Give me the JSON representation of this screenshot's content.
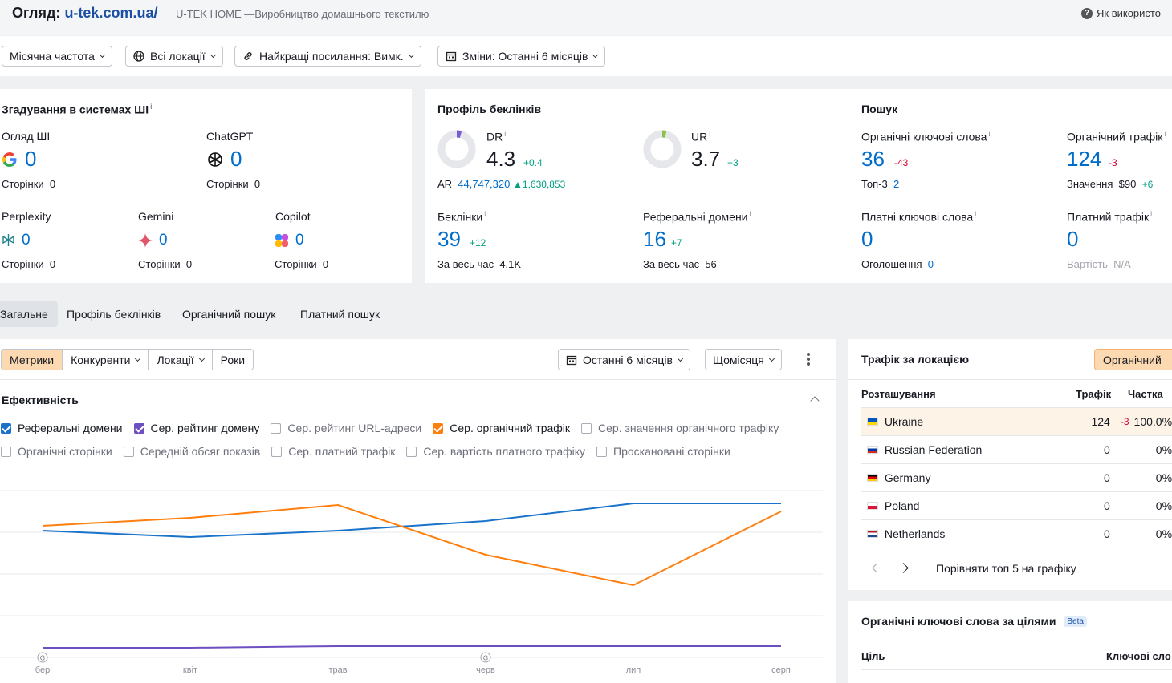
{
  "header": {
    "title_prefix": "Огляд:",
    "domain": "u-tek.com.ua/",
    "subtitle": "U-TEK HOME —Виробництво домашнього текстилю",
    "help": "Як використо"
  },
  "filters": {
    "frequency": "Місячна частота",
    "locations": "Всі локації",
    "best_links": "Найкращі посилання: Вимк.",
    "changes": "Зміни: Останні 6 місяців"
  },
  "ai": {
    "title": "Згадування в системах ШІ",
    "overview": {
      "label": "Огляд ШІ",
      "value": "0",
      "pages_label": "Сторінки",
      "pages": "0"
    },
    "chatgpt": {
      "label": "ChatGPT",
      "value": "0",
      "pages_label": "Сторінки",
      "pages": "0"
    },
    "perplexity": {
      "label": "Perplexity",
      "value": "0",
      "pages_label": "Сторінки",
      "pages": "0"
    },
    "gemini": {
      "label": "Gemini",
      "value": "0",
      "pages_label": "Сторінки",
      "pages": "0"
    },
    "copilot": {
      "label": "Copilot",
      "value": "0",
      "pages_label": "Сторінки",
      "pages": "0"
    }
  },
  "backlinks": {
    "title": "Профіль беклінків",
    "dr": {
      "label": "DR",
      "value": "4.3",
      "delta": "+0.4",
      "ring_fraction": 0.043
    },
    "ur": {
      "label": "UR",
      "value": "3.7",
      "delta": "+3",
      "ring_fraction": 0.037
    },
    "ar": {
      "label": "AR",
      "value": "44,747,320",
      "delta": "1,630,853"
    },
    "backlinks": {
      "label": "Беклінки",
      "value": "39",
      "delta": "+12",
      "all_time_label": "За весь час",
      "all_time": "4.1K"
    },
    "ref_domains": {
      "label": "Реферальні домени",
      "value": "16",
      "delta": "+7",
      "all_time_label": "За весь час",
      "all_time": "56"
    }
  },
  "search": {
    "title": "Пошук",
    "organic_kw": {
      "label": "Органічні ключові слова",
      "value": "36",
      "delta": "-43",
      "sub_label": "Топ-3",
      "sub": "2"
    },
    "organic_traffic": {
      "label": "Органічний трафік",
      "value": "124",
      "delta": "-3",
      "sub_label": "Значення",
      "sub": "$90",
      "sub_delta": "+6"
    },
    "paid_kw": {
      "label": "Платні ключові слова",
      "value": "0",
      "sub_label": "Оголошення",
      "sub": "0"
    },
    "paid_traffic": {
      "label": "Платний трафік",
      "value": "0",
      "sub_label": "Вартість",
      "sub": "N/A"
    }
  },
  "tabs": [
    "Загальне",
    "Профіль беклінків",
    "Органічний пошук",
    "Платний пошук"
  ],
  "chart_toolbar": {
    "tabs": [
      "Метрики",
      "Конкуренти",
      "Локації",
      "Роки"
    ],
    "period": "Останні 6 місяців",
    "interval": "Щомісяця"
  },
  "performance": {
    "title": "Ефективність",
    "legend_row1": [
      {
        "label": "Реферальні домени",
        "checked": true,
        "color": "#1a73c9"
      },
      {
        "label": "Сер. рейтинг домену",
        "checked": true,
        "color": "#6d4fc1"
      },
      {
        "label": "Сер. рейтинг URL-адреси",
        "checked": false
      },
      {
        "label": "Сер. органічний трафік",
        "checked": true,
        "color": "#ff7f0e"
      },
      {
        "label": "Сер. значення органічного трафіку",
        "checked": false
      }
    ],
    "legend_row2": [
      {
        "label": "Органічні сторінки",
        "checked": false
      },
      {
        "label": "Середній обсяг показів",
        "checked": false
      },
      {
        "label": "Сер. платний трафік",
        "checked": false
      },
      {
        "label": "Сер. вартість платного трафіку",
        "checked": false
      },
      {
        "label": "Проскановані сторінки",
        "checked": false
      }
    ]
  },
  "chart_data": {
    "type": "line",
    "categories": [
      "бер",
      "квіт",
      "трав",
      "черв",
      "лип",
      "серп"
    ],
    "series": [
      {
        "name": "Реферальні домени",
        "color": "#1a73c9",
        "values": [
          0.75,
          0.71,
          0.75,
          0.81,
          0.92,
          0.92
        ]
      },
      {
        "name": "Сер. органічний трафік",
        "color": "#ff7f0e",
        "values": [
          0.78,
          0.83,
          0.91,
          0.6,
          0.41,
          0.87
        ]
      },
      {
        "name": "Сер. рейтинг домену",
        "color": "#6d4fc1",
        "values": [
          0.02,
          0.02,
          0.03,
          0.03,
          0.03,
          0.03
        ]
      }
    ],
    "annotations": [
      "G",
      "G"
    ]
  },
  "location_traffic": {
    "title": "Трафік за локацією",
    "button": "Органічний",
    "headers": {
      "location": "Розташування",
      "traffic": "Трафік",
      "share": "Частка"
    },
    "rows": [
      {
        "country": "Ukraine",
        "traffic": "124",
        "delta": "-3",
        "share": "100.0%"
      },
      {
        "country": "Russian Federation",
        "traffic": "0",
        "delta": "",
        "share": "0%"
      },
      {
        "country": "Germany",
        "traffic": "0",
        "delta": "",
        "share": "0%"
      },
      {
        "country": "Poland",
        "traffic": "0",
        "delta": "",
        "share": "0%"
      },
      {
        "country": "Netherlands",
        "traffic": "0",
        "delta": "",
        "share": "0%"
      }
    ],
    "compare": "Порівняти топ 5 на графіку"
  },
  "intent": {
    "title": "Органічні ключові слова за цілями",
    "badge": "Beta",
    "col_goal": "Ціль",
    "col_kw": "Ключові сло"
  }
}
